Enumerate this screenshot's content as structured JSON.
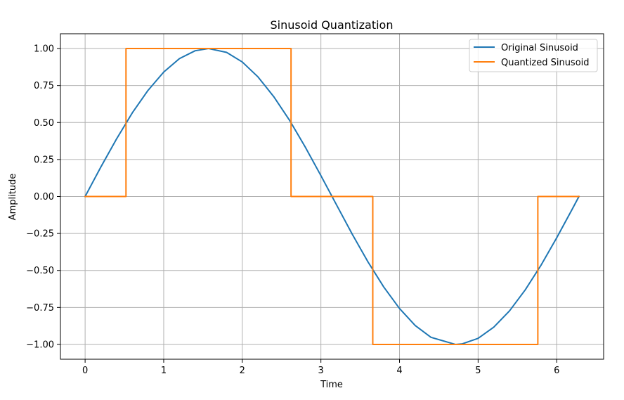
{
  "chart_data": {
    "type": "line",
    "title": "Sinusoid Quantization",
    "xlabel": "Time",
    "ylabel": "Amplitude",
    "xlim": [
      -0.314,
      6.597
    ],
    "ylim": [
      -1.1,
      1.1
    ],
    "xticks": [
      0,
      1,
      2,
      3,
      4,
      5,
      6
    ],
    "xtick_labels": [
      "0",
      "1",
      "2",
      "3",
      "4",
      "5",
      "6"
    ],
    "yticks": [
      1.0,
      0.75,
      0.5,
      0.25,
      0.0,
      -0.25,
      -0.5,
      -0.75,
      -1.0
    ],
    "ytick_labels": [
      "1.00",
      "0.75",
      "0.50",
      "0.25",
      "0.00",
      "−0.25",
      "−0.50",
      "−0.75",
      "−1.00"
    ],
    "grid": true,
    "legend_position": "top-right",
    "series": [
      {
        "name": "Original Sinusoid",
        "color": "#1f77b4",
        "x": [
          0.0,
          0.2,
          0.4,
          0.6,
          0.8,
          1.0,
          1.2,
          1.4,
          1.571,
          1.8,
          2.0,
          2.2,
          2.4,
          2.6,
          2.8,
          3.0,
          3.2,
          3.4,
          3.6,
          3.8,
          4.0,
          4.2,
          4.4,
          4.712,
          4.8,
          5.0,
          5.2,
          5.4,
          5.6,
          5.8,
          6.0,
          6.2,
          6.283
        ],
        "y": [
          0.0,
          0.199,
          0.389,
          0.565,
          0.717,
          0.841,
          0.932,
          0.985,
          1.0,
          0.974,
          0.909,
          0.808,
          0.675,
          0.516,
          0.335,
          0.141,
          -0.058,
          -0.256,
          -0.443,
          -0.612,
          -0.757,
          -0.872,
          -0.952,
          -1.0,
          -0.996,
          -0.959,
          -0.883,
          -0.773,
          -0.631,
          -0.465,
          -0.279,
          -0.083,
          0.0
        ]
      },
      {
        "name": "Quantized Sinusoid",
        "color": "#ff7f0e",
        "x": [
          0.0,
          0.52,
          0.52,
          2.62,
          2.62,
          3.66,
          3.66,
          5.76,
          5.76,
          6.283
        ],
        "y": [
          0.0,
          0.0,
          1.0,
          1.0,
          0.0,
          0.0,
          -1.0,
          -1.0,
          0.0,
          0.0
        ]
      }
    ]
  }
}
